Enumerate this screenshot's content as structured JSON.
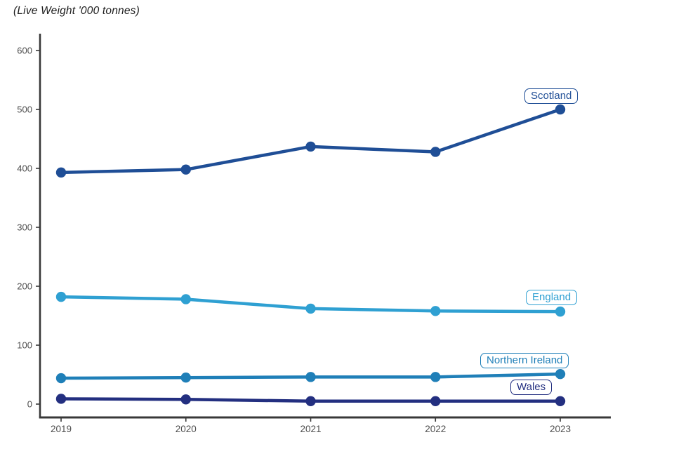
{
  "chart_data": {
    "type": "line",
    "title": "(Live Weight '000 tonnes)",
    "xlabel": "",
    "ylabel": "Live Weight '000 tonnes",
    "x_categories": [
      "2019",
      "2020",
      "2021",
      "2022",
      "2023"
    ],
    "series": [
      {
        "name": "Scotland",
        "color": "#1F4E96",
        "values": [
          393,
          398,
          437,
          428,
          500
        ]
      },
      {
        "name": "England",
        "color": "#2FA0D2",
        "values": [
          182,
          178,
          162,
          158,
          157
        ]
      },
      {
        "name": "Northern Ireland",
        "color": "#1F7FB8",
        "values": [
          44,
          45,
          46,
          46,
          51
        ]
      },
      {
        "name": "Wales",
        "color": "#232F80",
        "values": [
          9,
          8,
          5,
          5,
          5
        ]
      }
    ],
    "ylim": [
      0,
      600
    ],
    "yticks": [
      0,
      100,
      200,
      300,
      400,
      500,
      600
    ],
    "grid": false,
    "legend": "inline-labels-right",
    "axis_color": "#383838",
    "tick_label_color": "#4D4D4D"
  }
}
